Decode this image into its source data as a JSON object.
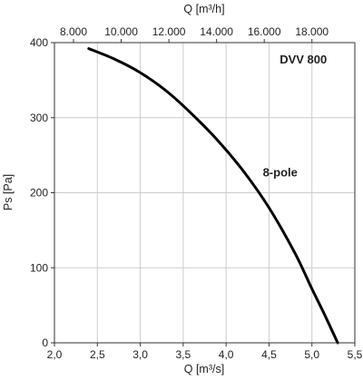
{
  "chart_data": {
    "type": "line",
    "title": "DVV 800",
    "xlabel": "Q [m³/s]",
    "ylabel": "Ps [Pa]",
    "x2label": "Q [m³/h]",
    "xlim": [
      2.0,
      5.5
    ],
    "ylim": [
      0,
      400
    ],
    "x2lim": [
      7200,
      19800
    ],
    "grid": true,
    "x_ticks": [
      "2,0",
      "2,5",
      "3,0",
      "3,5",
      "4,0",
      "4,5",
      "5,0",
      "5,5"
    ],
    "x_tick_values": [
      2.0,
      2.5,
      3.0,
      3.5,
      4.0,
      4.5,
      5.0,
      5.5
    ],
    "y_ticks": [
      "0",
      "100",
      "200",
      "300",
      "400"
    ],
    "y_tick_values": [
      0,
      100,
      200,
      300,
      400
    ],
    "x2_ticks": [
      "8.000",
      "10.000",
      "12.000",
      "14.000",
      "16.000",
      "18.000"
    ],
    "x2_tick_values": [
      8000,
      10000,
      12000,
      14000,
      16000,
      18000
    ],
    "series": [
      {
        "name": "8-pole",
        "color": "#000000",
        "x": [
          2.4,
          2.7,
          3.0,
          3.3,
          3.6,
          3.9,
          4.2,
          4.5,
          4.8,
          5.0,
          5.15,
          5.3
        ],
        "y": [
          392,
          378,
          360,
          336,
          305,
          270,
          229,
          180,
          120,
          72,
          37,
          0
        ]
      }
    ],
    "annotations": [
      {
        "text": "DVV 800",
        "x": 4.9,
        "y": 372
      },
      {
        "text": "8-pole",
        "x": 4.63,
        "y": 222
      }
    ]
  }
}
